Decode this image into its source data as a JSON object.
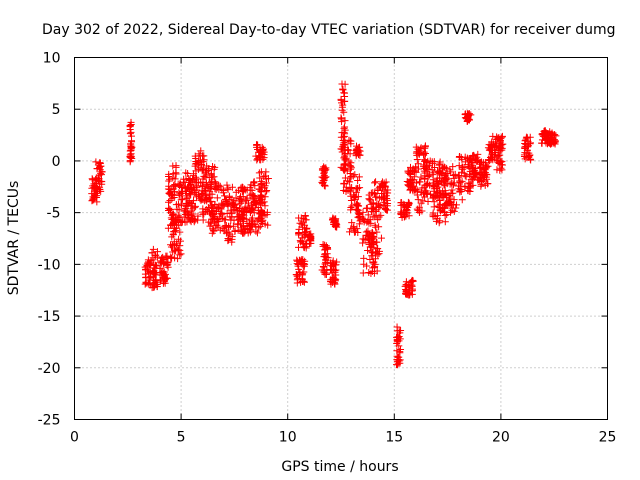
{
  "chart_data": {
    "type": "scatter",
    "title": "Day 302 of 2022, Sidereal Day-to-day VTEC variation (SDTVAR) for receiver dumg",
    "xlabel": "GPS time / hours",
    "ylabel": "SDTVAR / TECUs",
    "xlim": [
      0,
      25
    ],
    "ylim": [
      -25,
      10
    ],
    "xticks": [
      0,
      5,
      10,
      15,
      20,
      25
    ],
    "yticks": [
      -25,
      -20,
      -15,
      -10,
      -5,
      0,
      5,
      10
    ],
    "xtick_labels": [
      "0",
      "5",
      "10",
      "15",
      "20",
      "25"
    ],
    "ytick_labels": [
      "-25",
      "-20",
      "-15",
      "-10",
      "-5",
      "0",
      "5",
      "10"
    ],
    "grid": true,
    "marker": "+",
    "color": "#ff0000",
    "clusters": [
      {
        "x": [
          0.8,
          1.05
        ],
        "y": [
          -4,
          -1.5
        ]
      },
      {
        "x": [
          1.0,
          1.3
        ],
        "y": [
          -3,
          0
        ]
      },
      {
        "x": [
          2.6,
          2.7
        ],
        "y": [
          -0.2,
          4
        ]
      },
      {
        "x": [
          3.3,
          3.6
        ],
        "y": [
          -12,
          -9.5
        ]
      },
      {
        "x": [
          3.6,
          3.9
        ],
        "y": [
          -12.5,
          -8.5
        ]
      },
      {
        "x": [
          4.0,
          4.4
        ],
        "y": [
          -12,
          -9
        ]
      },
      {
        "x": [
          4.4,
          4.8
        ],
        "y": [
          -7,
          -0.2
        ]
      },
      {
        "x": [
          4.5,
          5.0
        ],
        "y": [
          -9.5,
          -5
        ]
      },
      {
        "x": [
          4.8,
          5.6
        ],
        "y": [
          -6,
          -1.5
        ]
      },
      {
        "x": [
          5.2,
          5.8
        ],
        "y": [
          -6,
          -1
        ]
      },
      {
        "x": [
          5.6,
          6.2
        ],
        "y": [
          -4,
          1
        ]
      },
      {
        "x": [
          6.0,
          6.6
        ],
        "y": [
          -6,
          -0.5
        ]
      },
      {
        "x": [
          6.3,
          6.9
        ],
        "y": [
          -7,
          -2
        ]
      },
      {
        "x": [
          6.9,
          7.4
        ],
        "y": [
          -8,
          -2
        ]
      },
      {
        "x": [
          7.4,
          8.0
        ],
        "y": [
          -7,
          -2.5
        ]
      },
      {
        "x": [
          7.8,
          8.4
        ],
        "y": [
          -7,
          -2.5
        ]
      },
      {
        "x": [
          8.2,
          8.8
        ],
        "y": [
          -7,
          -2
        ]
      },
      {
        "x": [
          8.5,
          8.9
        ],
        "y": [
          0,
          1.6
        ]
      },
      {
        "x": [
          8.6,
          9.1
        ],
        "y": [
          -6.5,
          -1
        ]
      },
      {
        "x": [
          10.4,
          10.8
        ],
        "y": [
          -12,
          -9.5
        ]
      },
      {
        "x": [
          10.5,
          10.9
        ],
        "y": [
          -8.5,
          -5
        ]
      },
      {
        "x": [
          11.0,
          11.1
        ],
        "y": [
          -8,
          -7
        ]
      },
      {
        "x": [
          11.6,
          11.8
        ],
        "y": [
          -2.5,
          -0.5
        ]
      },
      {
        "x": [
          11.6,
          11.9
        ],
        "y": [
          -11,
          -8
        ]
      },
      {
        "x": [
          12.0,
          12.3
        ],
        "y": [
          -12,
          -9.5
        ]
      },
      {
        "x": [
          12.1,
          12.3
        ],
        "y": [
          -6.5,
          -5.5
        ]
      },
      {
        "x": [
          12.5,
          12.7
        ],
        "y": [
          -1,
          7.5
        ]
      },
      {
        "x": [
          12.6,
          13.0
        ],
        "y": [
          -3,
          2
        ]
      },
      {
        "x": [
          12.9,
          13.4
        ],
        "y": [
          -7,
          -1
        ]
      },
      {
        "x": [
          13.2,
          13.4
        ],
        "y": [
          0.5,
          1.5
        ]
      },
      {
        "x": [
          13.5,
          14.2
        ],
        "y": [
          -11,
          -4.5
        ]
      },
      {
        "x": [
          13.8,
          14.4
        ],
        "y": [
          -10,
          -2
        ]
      },
      {
        "x": [
          14.4,
          14.7
        ],
        "y": [
          -5,
          -2
        ]
      },
      {
        "x": [
          15.1,
          15.3
        ],
        "y": [
          -20,
          -16
        ]
      },
      {
        "x": [
          15.3,
          15.7
        ],
        "y": [
          -5.5,
          -4
        ]
      },
      {
        "x": [
          15.5,
          15.9
        ],
        "y": [
          -13,
          -11.5
        ]
      },
      {
        "x": [
          15.6,
          16.0
        ],
        "y": [
          -3,
          -0.5
        ]
      },
      {
        "x": [
          16.0,
          16.5
        ],
        "y": [
          -5,
          1.5
        ]
      },
      {
        "x": [
          16.4,
          17.3
        ],
        "y": [
          -4,
          0
        ]
      },
      {
        "x": [
          16.8,
          17.5
        ],
        "y": [
          -6,
          -1
        ]
      },
      {
        "x": [
          17.3,
          18.2
        ],
        "y": [
          -5,
          -0.5
        ]
      },
      {
        "x": [
          18.0,
          18.7
        ],
        "y": [
          -3,
          0.5
        ]
      },
      {
        "x": [
          18.3,
          18.6
        ],
        "y": [
          3.8,
          4.6
        ]
      },
      {
        "x": [
          18.6,
          19.1
        ],
        "y": [
          -2,
          1
        ]
      },
      {
        "x": [
          19.0,
          19.4
        ],
        "y": [
          -2.5,
          0
        ]
      },
      {
        "x": [
          19.4,
          19.8
        ],
        "y": [
          0,
          2.5
        ]
      },
      {
        "x": [
          19.8,
          20.1
        ],
        "y": [
          -1,
          2.5
        ]
      },
      {
        "x": [
          21.1,
          21.4
        ],
        "y": [
          0,
          2.3
        ]
      },
      {
        "x": [
          21.9,
          22.4
        ],
        "y": [
          1.5,
          3
        ]
      },
      {
        "x": [
          22.1,
          22.6
        ],
        "y": [
          1.6,
          2.6
        ]
      }
    ]
  }
}
